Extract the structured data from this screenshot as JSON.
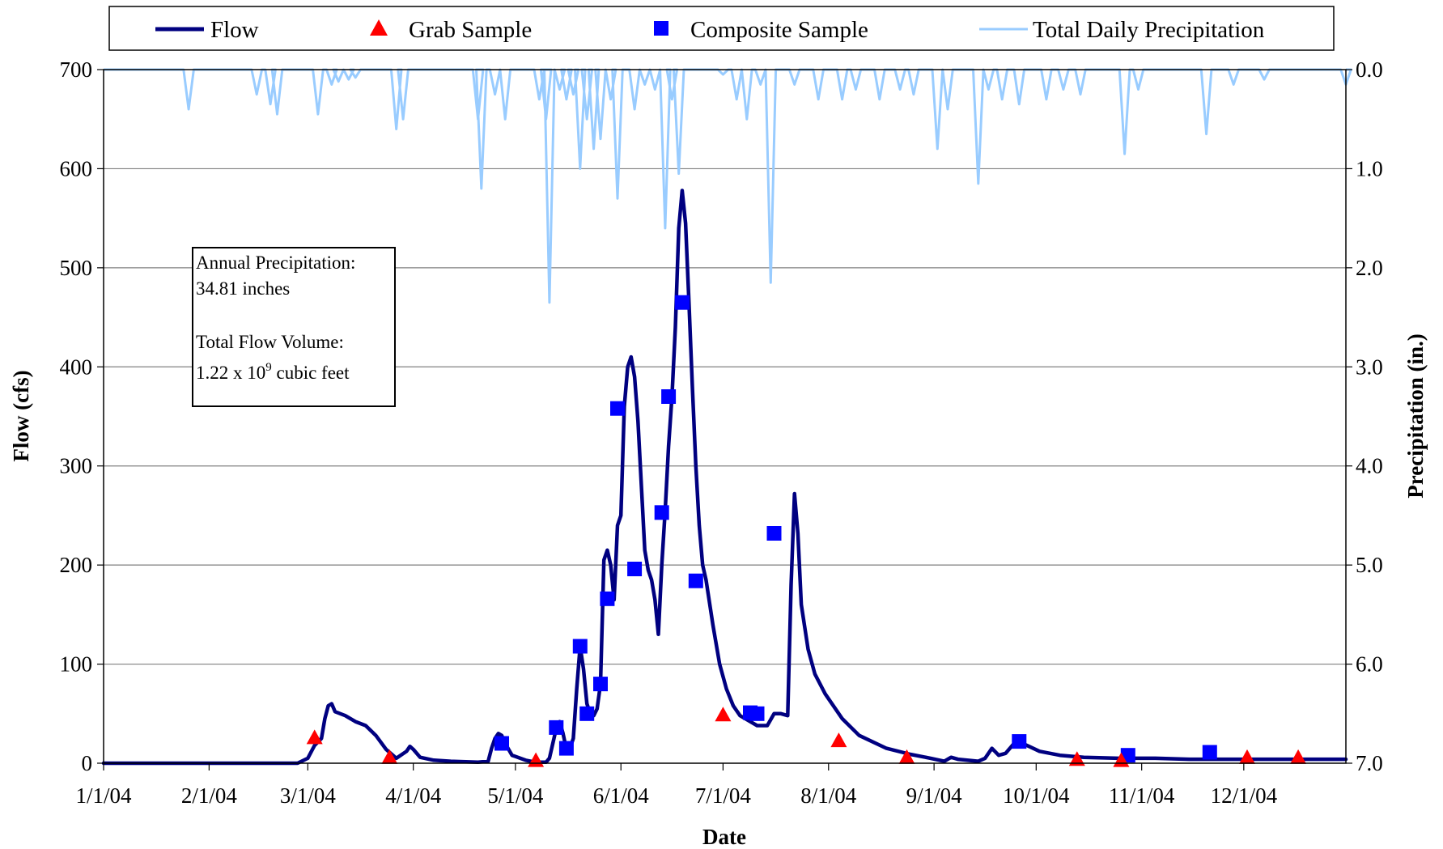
{
  "chart_data": {
    "type": "line",
    "xlabel": "Date",
    "ylabel": "Flow (cfs)",
    "y2label": "Precipitation (in.)",
    "x_range": [
      "1/1/04",
      "12/31/04"
    ],
    "ylim": [
      0,
      700
    ],
    "y2lim": [
      0.0,
      7.0
    ],
    "y2_inverted": true,
    "grid": "horizontal",
    "legend_position": "top",
    "x_ticks": [
      "1/1/04",
      "2/1/04",
      "3/1/04",
      "4/1/04",
      "5/1/04",
      "6/1/04",
      "7/1/04",
      "8/1/04",
      "9/1/04",
      "10/1/04",
      "11/1/04",
      "12/1/04"
    ],
    "y_ticks": [
      "0",
      "100",
      "200",
      "300",
      "400",
      "500",
      "600",
      "700"
    ],
    "y2_ticks": [
      "0.0",
      "1.0",
      "2.0",
      "3.0",
      "4.0",
      "5.0",
      "6.0",
      "7.0"
    ],
    "legend": {
      "flow": "Flow",
      "grab": "Grab Sample",
      "composite": "Composite Sample",
      "precip": "Total Daily Precipitation"
    },
    "colors": {
      "flow": "#000080",
      "grab": "#ff0000",
      "composite": "#0000ff",
      "precip": "#99ccff",
      "grid": "#808080"
    },
    "annotation": {
      "line1": "Annual Precipitation:",
      "line2": "34.81 inches",
      "line3": "Total Flow Volume:",
      "line4_pre": "1.22 x 10",
      "line4_sup": "9",
      "line4_post": " cubic feet"
    },
    "series": [
      {
        "name": "Flow",
        "unit": "cfs",
        "points": [
          [
            "2004-01-01",
            0
          ],
          [
            "2004-02-27",
            0
          ],
          [
            "2004-03-01",
            5
          ],
          [
            "2004-03-03",
            18
          ],
          [
            "2004-03-05",
            25
          ],
          [
            "2004-03-06",
            45
          ],
          [
            "2004-03-07",
            58
          ],
          [
            "2004-03-08",
            60
          ],
          [
            "2004-03-09",
            52
          ],
          [
            "2004-03-12",
            48
          ],
          [
            "2004-03-15",
            42
          ],
          [
            "2004-03-18",
            38
          ],
          [
            "2004-03-21",
            28
          ],
          [
            "2004-03-24",
            14
          ],
          [
            "2004-03-26",
            8
          ],
          [
            "2004-03-27",
            5
          ],
          [
            "2004-03-30",
            12
          ],
          [
            "2004-03-31",
            17
          ],
          [
            "2004-04-01",
            14
          ],
          [
            "2004-04-03",
            6
          ],
          [
            "2004-04-07",
            3
          ],
          [
            "2004-04-12",
            2
          ],
          [
            "2004-04-20",
            1
          ],
          [
            "2004-04-23",
            2
          ],
          [
            "2004-04-24",
            15
          ],
          [
            "2004-04-25",
            25
          ],
          [
            "2004-04-26",
            30
          ],
          [
            "2004-04-27",
            28
          ],
          [
            "2004-04-28",
            20
          ],
          [
            "2004-04-30",
            8
          ],
          [
            "2004-05-04",
            3
          ],
          [
            "2004-05-07",
            1
          ],
          [
            "2004-05-10",
            1
          ],
          [
            "2004-05-11",
            5
          ],
          [
            "2004-05-13",
            35
          ],
          [
            "2004-05-14",
            42
          ],
          [
            "2004-05-15",
            30
          ],
          [
            "2004-05-16",
            14
          ],
          [
            "2004-05-17",
            15
          ],
          [
            "2004-05-18",
            25
          ],
          [
            "2004-05-19",
            75
          ],
          [
            "2004-05-20",
            118
          ],
          [
            "2004-05-21",
            95
          ],
          [
            "2004-05-22",
            60
          ],
          [
            "2004-05-23",
            50
          ],
          [
            "2004-05-24",
            48
          ],
          [
            "2004-05-25",
            55
          ],
          [
            "2004-05-26",
            80
          ],
          [
            "2004-05-27",
            205
          ],
          [
            "2004-05-28",
            215
          ],
          [
            "2004-05-29",
            200
          ],
          [
            "2004-05-30",
            165
          ],
          [
            "2004-05-31",
            240
          ],
          [
            "2004-06-01",
            250
          ],
          [
            "2004-06-02",
            360
          ],
          [
            "2004-06-03",
            400
          ],
          [
            "2004-06-04",
            410
          ],
          [
            "2004-06-05",
            390
          ],
          [
            "2004-06-06",
            345
          ],
          [
            "2004-06-07",
            280
          ],
          [
            "2004-06-08",
            215
          ],
          [
            "2004-06-09",
            195
          ],
          [
            "2004-06-10",
            185
          ],
          [
            "2004-06-11",
            165
          ],
          [
            "2004-06-12",
            130
          ],
          [
            "2004-06-13",
            200
          ],
          [
            "2004-06-14",
            255
          ],
          [
            "2004-06-15",
            320
          ],
          [
            "2004-06-16",
            370
          ],
          [
            "2004-06-17",
            440
          ],
          [
            "2004-06-18",
            540
          ],
          [
            "2004-06-19",
            578
          ],
          [
            "2004-06-20",
            545
          ],
          [
            "2004-06-21",
            465
          ],
          [
            "2004-06-22",
            380
          ],
          [
            "2004-06-23",
            300
          ],
          [
            "2004-06-24",
            240
          ],
          [
            "2004-06-25",
            200
          ],
          [
            "2004-06-26",
            185
          ],
          [
            "2004-06-28",
            140
          ],
          [
            "2004-06-30",
            100
          ],
          [
            "2004-07-02",
            75
          ],
          [
            "2004-07-04",
            58
          ],
          [
            "2004-07-06",
            48
          ],
          [
            "2004-07-09",
            42
          ],
          [
            "2004-07-11",
            38
          ],
          [
            "2004-07-14",
            38
          ],
          [
            "2004-07-16",
            50
          ],
          [
            "2004-07-18",
            50
          ],
          [
            "2004-07-20",
            48
          ],
          [
            "2004-07-21",
            180
          ],
          [
            "2004-07-22",
            272
          ],
          [
            "2004-07-23",
            232
          ],
          [
            "2004-07-24",
            160
          ],
          [
            "2004-07-26",
            115
          ],
          [
            "2004-07-28",
            90
          ],
          [
            "2004-07-31",
            70
          ],
          [
            "2004-08-05",
            45
          ],
          [
            "2004-08-10",
            28
          ],
          [
            "2004-08-18",
            15
          ],
          [
            "2004-08-25",
            9
          ],
          [
            "2004-08-31",
            5
          ],
          [
            "2004-09-04",
            2
          ],
          [
            "2004-09-06",
            6
          ],
          [
            "2004-09-08",
            4
          ],
          [
            "2004-09-14",
            2
          ],
          [
            "2004-09-16",
            5
          ],
          [
            "2004-09-18",
            15
          ],
          [
            "2004-09-20",
            8
          ],
          [
            "2004-09-22",
            10
          ],
          [
            "2004-09-25",
            22
          ],
          [
            "2004-09-27",
            20
          ],
          [
            "2004-10-02",
            12
          ],
          [
            "2004-10-08",
            8
          ],
          [
            "2004-10-15",
            6
          ],
          [
            "2004-10-25",
            5
          ],
          [
            "2004-11-05",
            5
          ],
          [
            "2004-11-15",
            4
          ],
          [
            "2004-11-30",
            4
          ],
          [
            "2004-12-15",
            4
          ],
          [
            "2004-12-31",
            4
          ]
        ]
      },
      {
        "name": "Grab Sample",
        "unit": "cfs",
        "points": [
          [
            "2004-03-03",
            25
          ],
          [
            "2004-03-25",
            5
          ],
          [
            "2004-05-07",
            2
          ],
          [
            "2004-07-01",
            48
          ],
          [
            "2004-08-04",
            22
          ],
          [
            "2004-08-24",
            5
          ],
          [
            "2004-10-13",
            3
          ],
          [
            "2004-10-26",
            2
          ],
          [
            "2004-12-02",
            5
          ],
          [
            "2004-12-17",
            5
          ]
        ]
      },
      {
        "name": "Composite Sample",
        "unit": "cfs",
        "points": [
          [
            "2004-04-27",
            20
          ],
          [
            "2004-05-13",
            36
          ],
          [
            "2004-05-16",
            15
          ],
          [
            "2004-05-20",
            118
          ],
          [
            "2004-05-22",
            50
          ],
          [
            "2004-05-26",
            80
          ],
          [
            "2004-05-28",
            166
          ],
          [
            "2004-05-31",
            358
          ],
          [
            "2004-06-05",
            196
          ],
          [
            "2004-06-13",
            253
          ],
          [
            "2004-06-15",
            370
          ],
          [
            "2004-06-19",
            465
          ],
          [
            "2004-06-23",
            184
          ],
          [
            "2004-07-09",
            51
          ],
          [
            "2004-07-11",
            50
          ],
          [
            "2004-07-16",
            232
          ],
          [
            "2004-09-26",
            22
          ],
          [
            "2004-10-28",
            8
          ],
          [
            "2004-11-21",
            11
          ]
        ]
      },
      {
        "name": "Total Daily Precipitation",
        "unit": "in.",
        "points": [
          [
            "2004-01-26",
            0.4
          ],
          [
            "2004-02-15",
            0.25
          ],
          [
            "2004-02-19",
            0.35
          ],
          [
            "2004-02-21",
            0.45
          ],
          [
            "2004-03-04",
            0.45
          ],
          [
            "2004-03-08",
            0.15
          ],
          [
            "2004-03-10",
            0.12
          ],
          [
            "2004-03-13",
            0.1
          ],
          [
            "2004-03-15",
            0.08
          ],
          [
            "2004-03-27",
            0.6
          ],
          [
            "2004-03-29",
            0.5
          ],
          [
            "2004-04-20",
            0.5
          ],
          [
            "2004-04-21",
            1.2
          ],
          [
            "2004-04-25",
            0.25
          ],
          [
            "2004-04-28",
            0.5
          ],
          [
            "2004-05-08",
            0.3
          ],
          [
            "2004-05-10",
            0.5
          ],
          [
            "2004-05-11",
            2.35
          ],
          [
            "2004-05-14",
            0.2
          ],
          [
            "2004-05-16",
            0.3
          ],
          [
            "2004-05-18",
            0.25
          ],
          [
            "2004-05-20",
            1.0
          ],
          [
            "2004-05-22",
            0.5
          ],
          [
            "2004-05-24",
            0.8
          ],
          [
            "2004-05-26",
            0.7
          ],
          [
            "2004-05-29",
            0.3
          ],
          [
            "2004-05-31",
            1.3
          ],
          [
            "2004-06-05",
            0.4
          ],
          [
            "2004-06-08",
            0.15
          ],
          [
            "2004-06-11",
            0.2
          ],
          [
            "2004-06-14",
            1.6
          ],
          [
            "2004-06-16",
            0.3
          ],
          [
            "2004-06-18",
            1.05
          ],
          [
            "2004-07-01",
            0.05
          ],
          [
            "2004-07-05",
            0.3
          ],
          [
            "2004-07-08",
            0.5
          ],
          [
            "2004-07-12",
            0.15
          ],
          [
            "2004-07-15",
            2.15
          ],
          [
            "2004-07-22",
            0.15
          ],
          [
            "2004-07-29",
            0.3
          ],
          [
            "2004-08-05",
            0.3
          ],
          [
            "2004-08-09",
            0.2
          ],
          [
            "2004-08-16",
            0.3
          ],
          [
            "2004-08-22",
            0.2
          ],
          [
            "2004-08-26",
            0.25
          ],
          [
            "2004-09-02",
            0.8
          ],
          [
            "2004-09-05",
            0.4
          ],
          [
            "2004-09-14",
            1.15
          ],
          [
            "2004-09-17",
            0.2
          ],
          [
            "2004-09-21",
            0.3
          ],
          [
            "2004-09-26",
            0.35
          ],
          [
            "2004-10-04",
            0.3
          ],
          [
            "2004-10-09",
            0.2
          ],
          [
            "2004-10-14",
            0.25
          ],
          [
            "2004-10-27",
            0.85
          ],
          [
            "2004-10-31",
            0.2
          ],
          [
            "2004-11-20",
            0.65
          ],
          [
            "2004-11-28",
            0.15
          ],
          [
            "2004-12-07",
            0.1
          ],
          [
            "2004-12-31",
            0.15
          ]
        ]
      }
    ]
  }
}
